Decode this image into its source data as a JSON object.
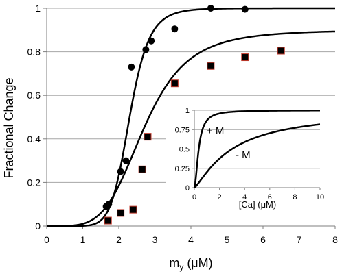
{
  "chart_data": [
    {
      "type": "scatter",
      "title": "",
      "xlabel": "m",
      "xlabel_sub": "y",
      "xlabel_unit": " (μM)",
      "ylabel": "Fractional Change",
      "xlim": [
        0,
        8
      ],
      "ylim": [
        0,
        1
      ],
      "x_ticks": [
        "0",
        "1",
        "2",
        "3",
        "4",
        "5",
        "6",
        "7",
        "8"
      ],
      "y_ticks": [
        "0",
        "0.2",
        "0.4",
        "0.6",
        "0.8",
        "1"
      ],
      "grid": "horizontal",
      "series": [
        {
          "marker": "circle",
          "color": "#000000",
          "points": [
            [
              1.65,
              0.09
            ],
            [
              1.72,
              0.1
            ],
            [
              2.05,
              0.25
            ],
            [
              2.2,
              0.3
            ],
            [
              2.35,
              0.73
            ],
            [
              2.75,
              0.81
            ],
            [
              2.9,
              0.85
            ],
            [
              3.55,
              0.905
            ],
            [
              4.55,
              1.0
            ],
            [
              5.5,
              0.995
            ]
          ],
          "fit": {
            "model": "hill",
            "max": 1.0,
            "k": 2.3,
            "n": 8.5
          }
        },
        {
          "marker": "square",
          "color": "#000000",
          "edge_color": "#c0392b",
          "points": [
            [
              1.7,
              0.025
            ],
            [
              2.05,
              0.06
            ],
            [
              2.4,
              0.075
            ],
            [
              2.65,
              0.26
            ],
            [
              2.8,
              0.41
            ],
            [
              3.55,
              0.655
            ],
            [
              4.55,
              0.735
            ],
            [
              5.5,
              0.775
            ],
            [
              6.5,
              0.805
            ]
          ],
          "fit": {
            "model": "hill",
            "max": 0.9,
            "k": 2.7,
            "n": 4.5
          }
        }
      ]
    },
    {
      "type": "line",
      "title": "",
      "xlabel": "[Ca] (μM)",
      "ylabel": "",
      "xlim": [
        0,
        10
      ],
      "ylim": [
        0,
        1
      ],
      "x_ticks": [
        "0",
        "2",
        "4",
        "6",
        "8",
        "10"
      ],
      "y_ticks": [
        "0",
        "0.25",
        "0.5",
        "0.75",
        "1"
      ],
      "grid": "horizontal",
      "series": [
        {
          "annotation": "+ M",
          "color": "#000000",
          "curve": {
            "model": "hill",
            "max": 1.0,
            "k": 0.35,
            "n": 1.8
          }
        },
        {
          "annotation": "- M",
          "color": "#000000",
          "curve": {
            "model": "hill",
            "max": 1.0,
            "k": 3.0,
            "n": 1.25
          }
        }
      ]
    }
  ]
}
